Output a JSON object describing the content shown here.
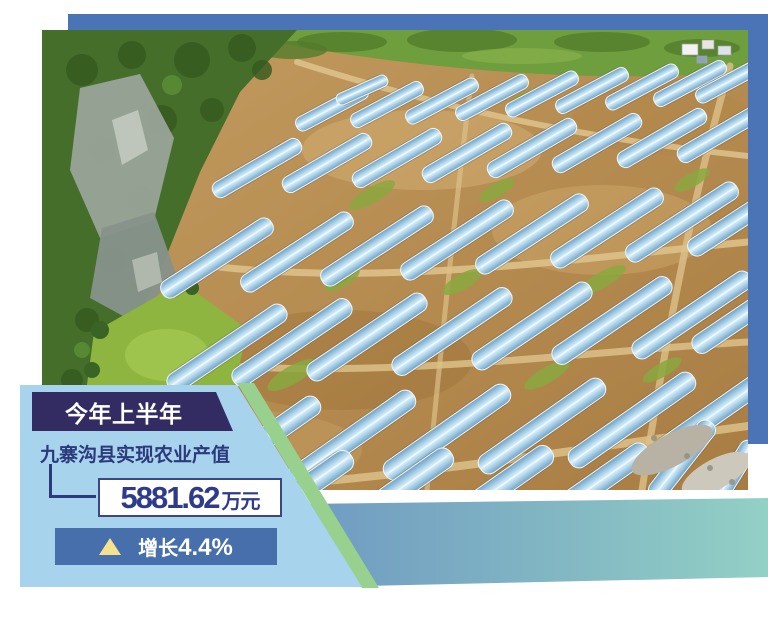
{
  "infographic": {
    "period_label": "今年上半年",
    "caption": "九寨沟县实现农业产值",
    "value": "5881.62",
    "unit": "万元",
    "growth_label": "增长",
    "growth_value": "4.4%"
  },
  "photo": {
    "name": "greenhouse-aerial-photo",
    "subject": "aerial view of rows of blue plastic greenhouses on hillside farmland beside a forested cliff"
  },
  "icons": {
    "growth_indicator": "up-triangle"
  },
  "colors": {
    "backdrop_blue": "#4a74b6",
    "panel_blue": "#a7d3ec",
    "title_navy": "#332c63",
    "text_navy": "#2c3a7d",
    "value_navy": "#2e3a8c",
    "growth_box_blue": "#466fac",
    "triangle_yellow": "#f6e18f",
    "ribbon_gradient_left": "#6f9ac2",
    "ribbon_gradient_right": "#93d0c5",
    "green_band": "#98d18d"
  }
}
